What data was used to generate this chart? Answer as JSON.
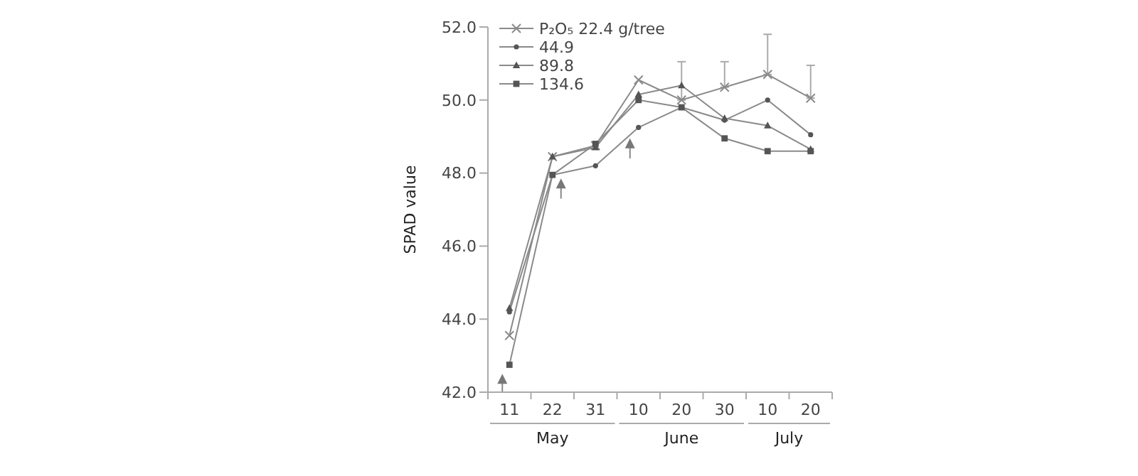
{
  "chart_data": {
    "type": "line",
    "ylabel": "SPAD value",
    "categories": [
      "11",
      "22",
      "31",
      "10",
      "20",
      "30",
      "10",
      "20"
    ],
    "series": [
      {
        "name": "P₂O₅ 22.4 g/tree",
        "color": "#8a8a8a",
        "marker": "cross",
        "values": [
          43.55,
          48.45,
          48.75,
          50.55,
          50.0,
          50.35,
          50.7,
          50.05
        ],
        "errors": [
          null,
          null,
          null,
          null,
          [
            50.0,
            51.05
          ],
          [
            50.35,
            51.05
          ],
          [
            50.7,
            51.8
          ],
          [
            50.05,
            50.95
          ]
        ]
      },
      {
        "name": "44.9",
        "color": "#8a8a8a",
        "marker": "circle",
        "values": [
          44.2,
          47.95,
          48.2,
          49.25,
          49.8,
          49.45,
          50.0,
          49.05
        ]
      },
      {
        "name": "89.8",
        "color": "#8a8a8a",
        "marker": "triangle",
        "values": [
          44.3,
          48.45,
          48.7,
          50.15,
          50.4,
          49.5,
          49.3,
          48.65
        ]
      },
      {
        "name": "134.6",
        "color": "#8a8a8a",
        "marker": "square",
        "values": [
          42.75,
          47.95,
          48.8,
          50.0,
          49.8,
          48.95,
          48.6,
          48.6
        ]
      }
    ],
    "ylim": [
      42,
      52
    ],
    "yticks": [
      {
        "value": 42,
        "label": "42.0"
      },
      {
        "value": 44,
        "label": "44.0"
      },
      {
        "value": 46,
        "label": "46.0"
      },
      {
        "value": 48,
        "label": "48.0"
      },
      {
        "value": 50,
        "label": "50.0"
      },
      {
        "value": 52,
        "label": "52.0"
      }
    ],
    "annotations": [
      "May",
      "June",
      "July"
    ],
    "legend": "top left"
  }
}
